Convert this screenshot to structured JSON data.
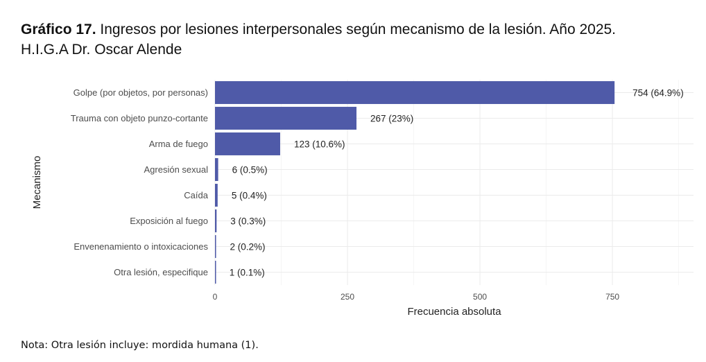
{
  "header": {
    "title_bold": "Gráfico 17.",
    "title_rest": " Ingresos por lesiones interpersonales según mecanismo de la lesión. Año 2025.",
    "title_line2": "H.I.G.A Dr. Oscar Alende"
  },
  "footnote": "Nota: Otra lesión incluye: mordida humana (1).",
  "chart_data": {
    "type": "bar",
    "orientation": "horizontal",
    "title": "Ingresos por lesiones interpersonales según mecanismo de la lesión. Año 2025. H.I.G.A Dr. Oscar Alende",
    "xlabel": "Frecuencia absoluta",
    "ylabel": "Mecanismo",
    "categories": [
      "Golpe (por objetos, por personas)",
      "Trauma con objeto punzo-cortante",
      "Arma de fuego",
      "Agresión sexual",
      "Caída",
      "Exposición al fuego",
      "Envenenamiento o intoxicaciones",
      "Otra lesión, especifique"
    ],
    "values": [
      754,
      267,
      123,
      6,
      5,
      3,
      2,
      1
    ],
    "data_labels": [
      "754 (64.9%)",
      "267 (23%)",
      "123 (10.6%)",
      "6 (0.5%)",
      "5 (0.4%)",
      "3 (0.3%)",
      "2 (0.2%)",
      "1 (0.1%)"
    ],
    "xticks": [
      0,
      250,
      500,
      750
    ],
    "xtick_labels": [
      "0",
      "250",
      "500",
      "750"
    ],
    "xlim": [
      0,
      903
    ],
    "grid": true,
    "bar_color": "#4f5aa8"
  }
}
